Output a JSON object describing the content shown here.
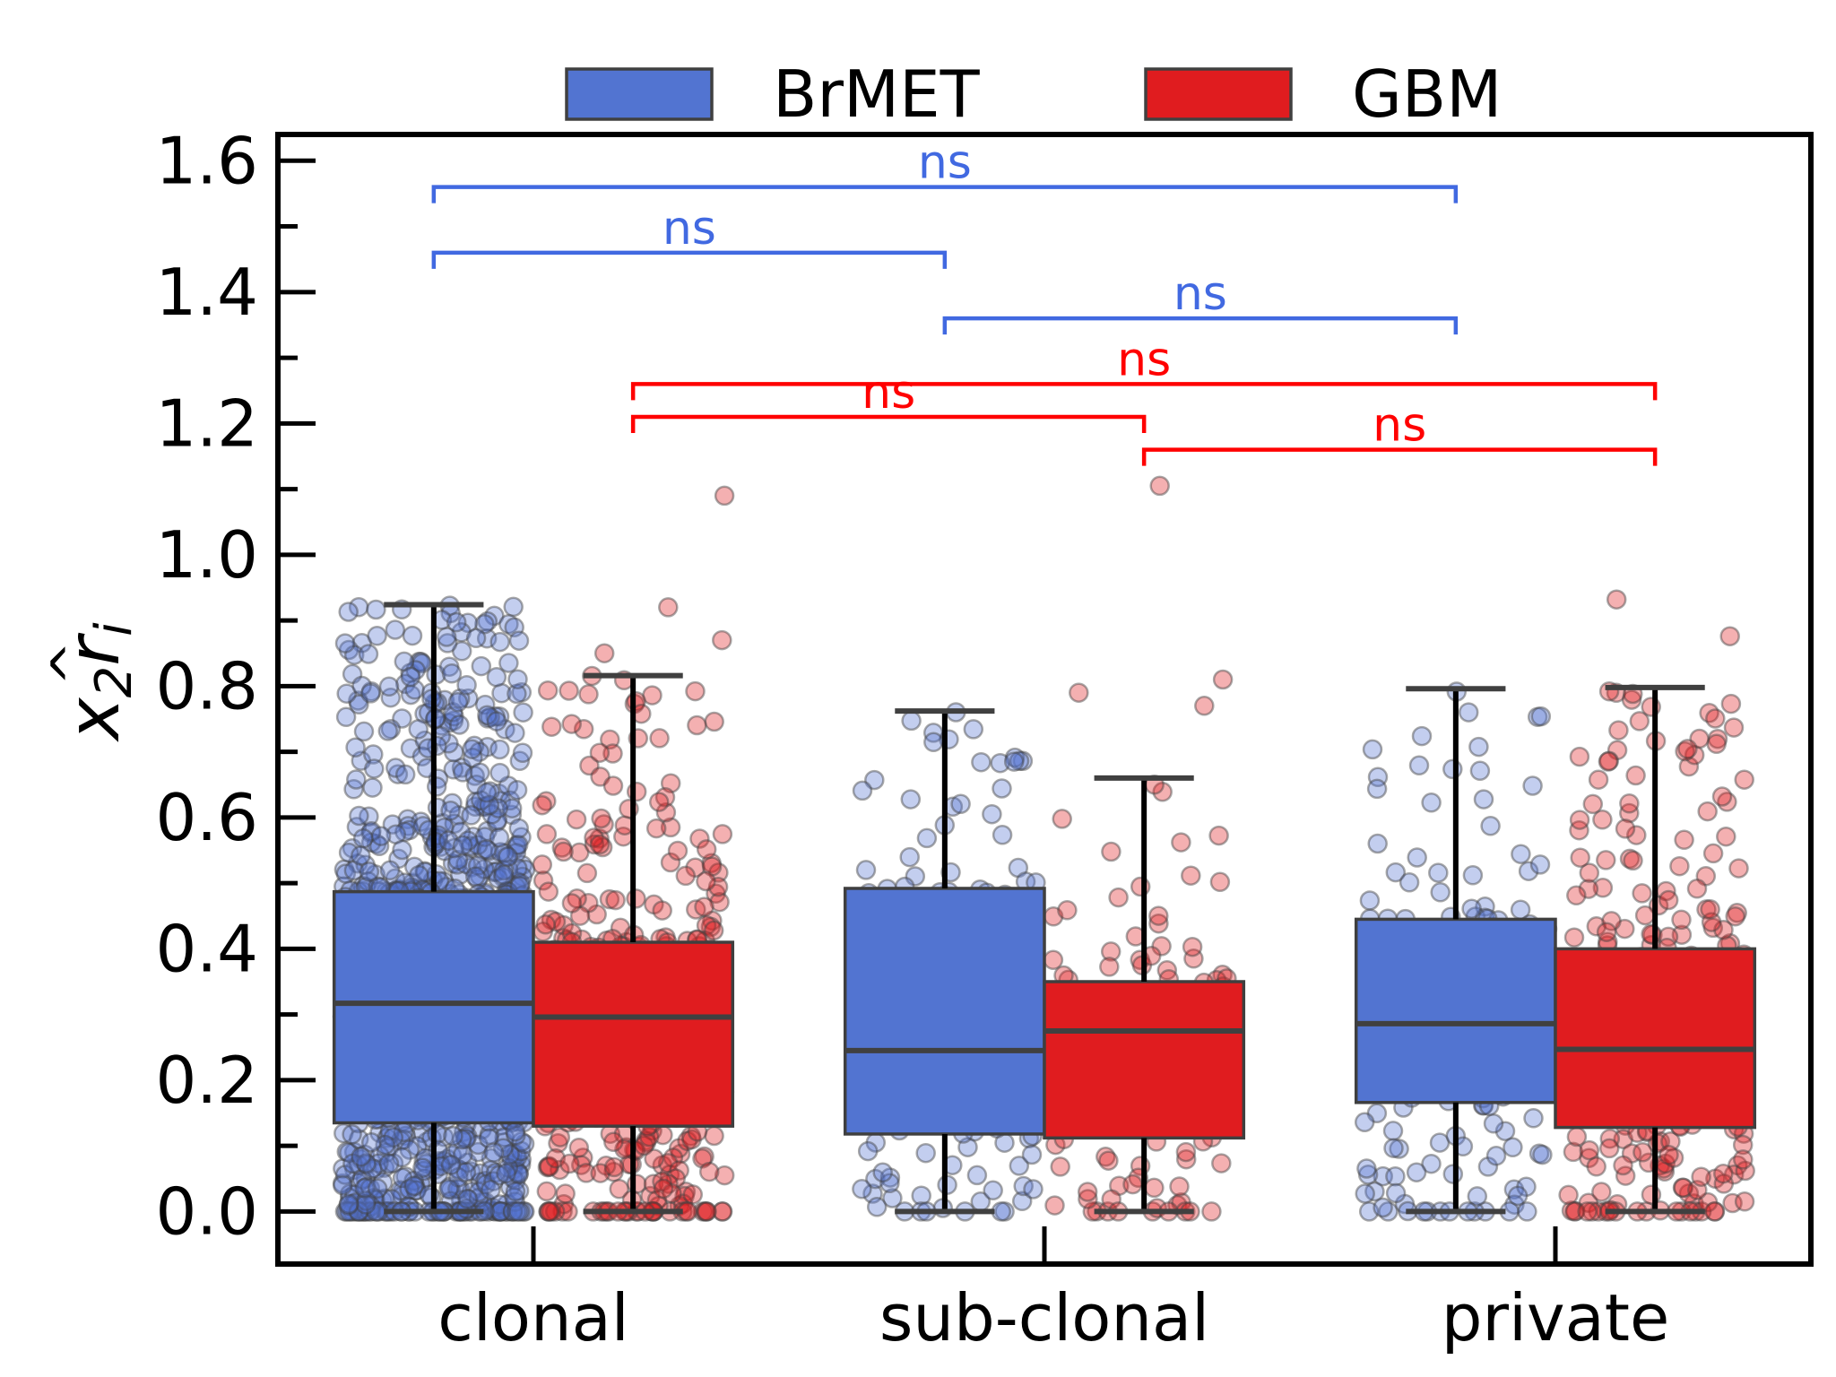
{
  "chart_data": {
    "type": "box",
    "ylabel": {
      "base": "x",
      "sub1": "2",
      "mid": "r",
      "sub2": "i"
    },
    "ylim": [
      -0.08,
      1.64
    ],
    "yticks": [
      "0.0",
      "0.2",
      "0.4",
      "0.6",
      "0.8",
      "1.0",
      "1.2",
      "1.4",
      "1.6"
    ],
    "categories": [
      "clonal",
      "sub-clonal",
      "private"
    ],
    "legend": {
      "placement": "top-center"
    },
    "series": [
      {
        "name": "BrMET",
        "color": "#5274d1",
        "boxes": [
          {
            "category": "clonal",
            "whisker_low": 0.0,
            "q1": 0.135,
            "median": 0.317,
            "q3": 0.487,
            "whisker_high": 0.924,
            "n": 1100,
            "outliers": []
          },
          {
            "category": "sub-clonal",
            "whisker_low": 0.0,
            "q1": 0.118,
            "median": 0.245,
            "q3": 0.492,
            "whisker_high": 0.762,
            "n": 140,
            "outliers": []
          },
          {
            "category": "private",
            "whisker_low": 0.0,
            "q1": 0.166,
            "median": 0.286,
            "q3": 0.445,
            "whisker_high": 0.796,
            "n": 160,
            "outliers": []
          }
        ]
      },
      {
        "name": "GBM",
        "color": "#e01c1f",
        "boxes": [
          {
            "category": "clonal",
            "whisker_low": 0.0,
            "q1": 0.13,
            "median": 0.296,
            "q3": 0.41,
            "whisker_high": 0.816,
            "n": 420,
            "outliers": [
              0.92,
              0.87,
              0.85,
              1.09
            ]
          },
          {
            "category": "sub-clonal",
            "whisker_low": 0.0,
            "q1": 0.112,
            "median": 0.275,
            "q3": 0.35,
            "whisker_high": 0.66,
            "n": 120,
            "outliers": [
              0.79,
              0.81,
              0.77,
              1.105
            ]
          },
          {
            "category": "private",
            "whisker_low": 0.0,
            "q1": 0.128,
            "median": 0.247,
            "q3": 0.4,
            "whisker_high": 0.798,
            "n": 260,
            "outliers": [
              0.876,
              0.932
            ]
          }
        ]
      }
    ],
    "annotations": [
      {
        "series": "BrMET",
        "from": "clonal",
        "to": "private",
        "y": 1.56,
        "text": "ns"
      },
      {
        "series": "BrMET",
        "from": "clonal",
        "to": "sub-clonal",
        "y": 1.46,
        "text": "ns"
      },
      {
        "series": "BrMET",
        "from": "sub-clonal",
        "to": "private",
        "y": 1.36,
        "text": "ns"
      },
      {
        "series": "GBM",
        "from": "clonal",
        "to": "private",
        "y": 1.26,
        "text": "ns"
      },
      {
        "series": "GBM",
        "from": "clonal",
        "to": "sub-clonal",
        "y": 1.21,
        "text": "ns"
      },
      {
        "series": "GBM",
        "from": "sub-clonal",
        "to": "private",
        "y": 1.16,
        "text": "ns"
      }
    ],
    "annotation_colors": {
      "BrMET": "#4169e1",
      "GBM": "#ff0000"
    }
  }
}
